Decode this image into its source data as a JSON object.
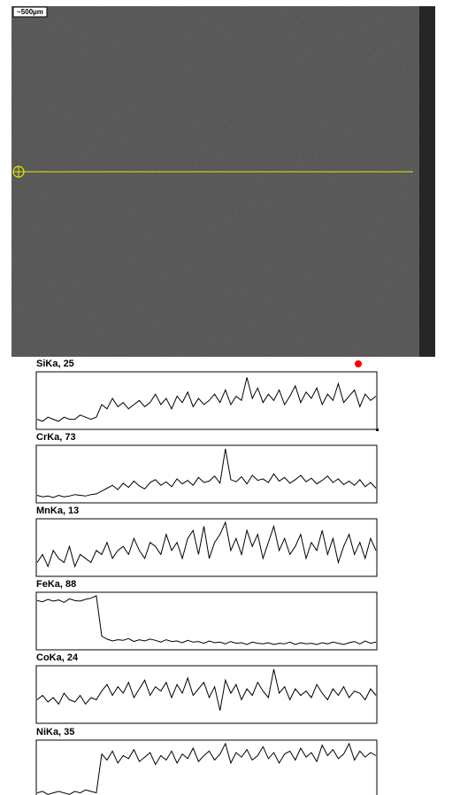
{
  "image": {
    "scale_bar": "~500µm"
  },
  "chart_data": [
    {
      "type": "line",
      "title": "SiKa, 25",
      "color": "#000000",
      "ylim": [
        0,
        25
      ],
      "values": [
        4,
        3,
        5,
        4,
        3,
        5,
        4,
        4,
        6,
        5,
        4,
        5,
        11,
        9,
        14,
        10,
        12,
        9,
        11,
        13,
        10,
        12,
        16,
        11,
        14,
        9,
        15,
        12,
        17,
        10,
        14,
        11,
        13,
        16,
        12,
        18,
        11,
        15,
        13,
        24,
        14,
        19,
        12,
        16,
        13,
        18,
        11,
        15,
        20,
        12,
        17,
        14,
        19,
        11,
        16,
        13,
        21,
        12,
        15,
        18,
        10,
        16,
        13,
        15
      ]
    },
    {
      "type": "line",
      "title": "CrKa, 73",
      "color": "#000000",
      "ylim": [
        0,
        73
      ],
      "values": [
        8,
        6,
        7,
        5,
        8,
        6,
        7,
        9,
        8,
        7,
        9,
        10,
        14,
        18,
        22,
        16,
        25,
        19,
        28,
        21,
        17,
        26,
        30,
        22,
        27,
        20,
        31,
        24,
        29,
        22,
        33,
        26,
        28,
        35,
        25,
        73,
        30,
        27,
        34,
        24,
        36,
        29,
        31,
        26,
        38,
        28,
        33,
        25,
        30,
        36,
        27,
        32,
        24,
        29,
        35,
        26,
        31,
        23,
        28,
        22,
        30,
        20,
        26,
        18
      ]
    },
    {
      "type": "line",
      "title": "MnKa, 13",
      "color": "#000000",
      "ylim": [
        0,
        13
      ],
      "values": [
        3,
        5,
        2,
        6,
        4,
        3,
        7,
        2,
        5,
        4,
        3,
        6,
        5,
        8,
        4,
        6,
        7,
        5,
        9,
        6,
        4,
        8,
        7,
        5,
        10,
        6,
        8,
        4,
        9,
        11,
        5,
        12,
        4,
        8,
        10,
        13,
        6,
        9,
        5,
        11,
        7,
        10,
        4,
        8,
        12,
        6,
        9,
        5,
        7,
        10,
        4,
        8,
        6,
        11,
        5,
        9,
        3,
        7,
        10,
        5,
        8,
        4,
        9,
        6
      ]
    },
    {
      "type": "line",
      "title": "FeKa, 88",
      "color": "#000000",
      "ylim": [
        0,
        88
      ],
      "values": [
        80,
        78,
        82,
        79,
        81,
        77,
        83,
        80,
        79,
        82,
        84,
        88,
        20,
        15,
        12,
        14,
        13,
        16,
        11,
        14,
        12,
        15,
        13,
        10,
        14,
        11,
        12,
        9,
        13,
        10,
        11,
        8,
        12,
        9,
        10,
        7,
        11,
        8,
        9,
        6,
        10,
        8,
        7,
        9,
        6,
        8,
        7,
        10,
        6,
        9,
        7,
        8,
        6,
        9,
        7,
        10,
        8,
        6,
        9,
        11,
        7,
        12,
        8,
        10
      ]
    },
    {
      "type": "line",
      "title": "CoKa, 24",
      "color": "#000000",
      "ylim": [
        0,
        24
      ],
      "values": [
        10,
        12,
        9,
        11,
        8,
        13,
        10,
        9,
        12,
        8,
        11,
        10,
        14,
        17,
        12,
        16,
        13,
        18,
        11,
        15,
        19,
        12,
        16,
        14,
        18,
        11,
        17,
        13,
        20,
        12,
        15,
        18,
        11,
        16,
        5,
        19,
        13,
        17,
        10,
        15,
        12,
        18,
        14,
        11,
        24,
        13,
        16,
        10,
        15,
        12,
        14,
        11,
        17,
        13,
        10,
        15,
        12,
        16,
        11,
        14,
        13,
        10,
        15,
        12
      ]
    },
    {
      "type": "line",
      "title": "NiKa, 35",
      "color": "#000000",
      "ylim": [
        0,
        35
      ],
      "values": [
        2,
        3,
        1,
        2,
        3,
        2,
        1,
        3,
        2,
        4,
        3,
        2,
        28,
        24,
        30,
        22,
        27,
        25,
        31,
        23,
        26,
        29,
        21,
        27,
        24,
        30,
        22,
        28,
        25,
        32,
        23,
        27,
        30,
        24,
        28,
        35,
        22,
        29,
        26,
        31,
        24,
        27,
        33,
        25,
        29,
        22,
        28,
        30,
        24,
        32,
        26,
        29,
        23,
        34,
        27,
        31,
        25,
        28,
        35,
        24,
        30,
        26,
        29,
        27
      ]
    }
  ]
}
